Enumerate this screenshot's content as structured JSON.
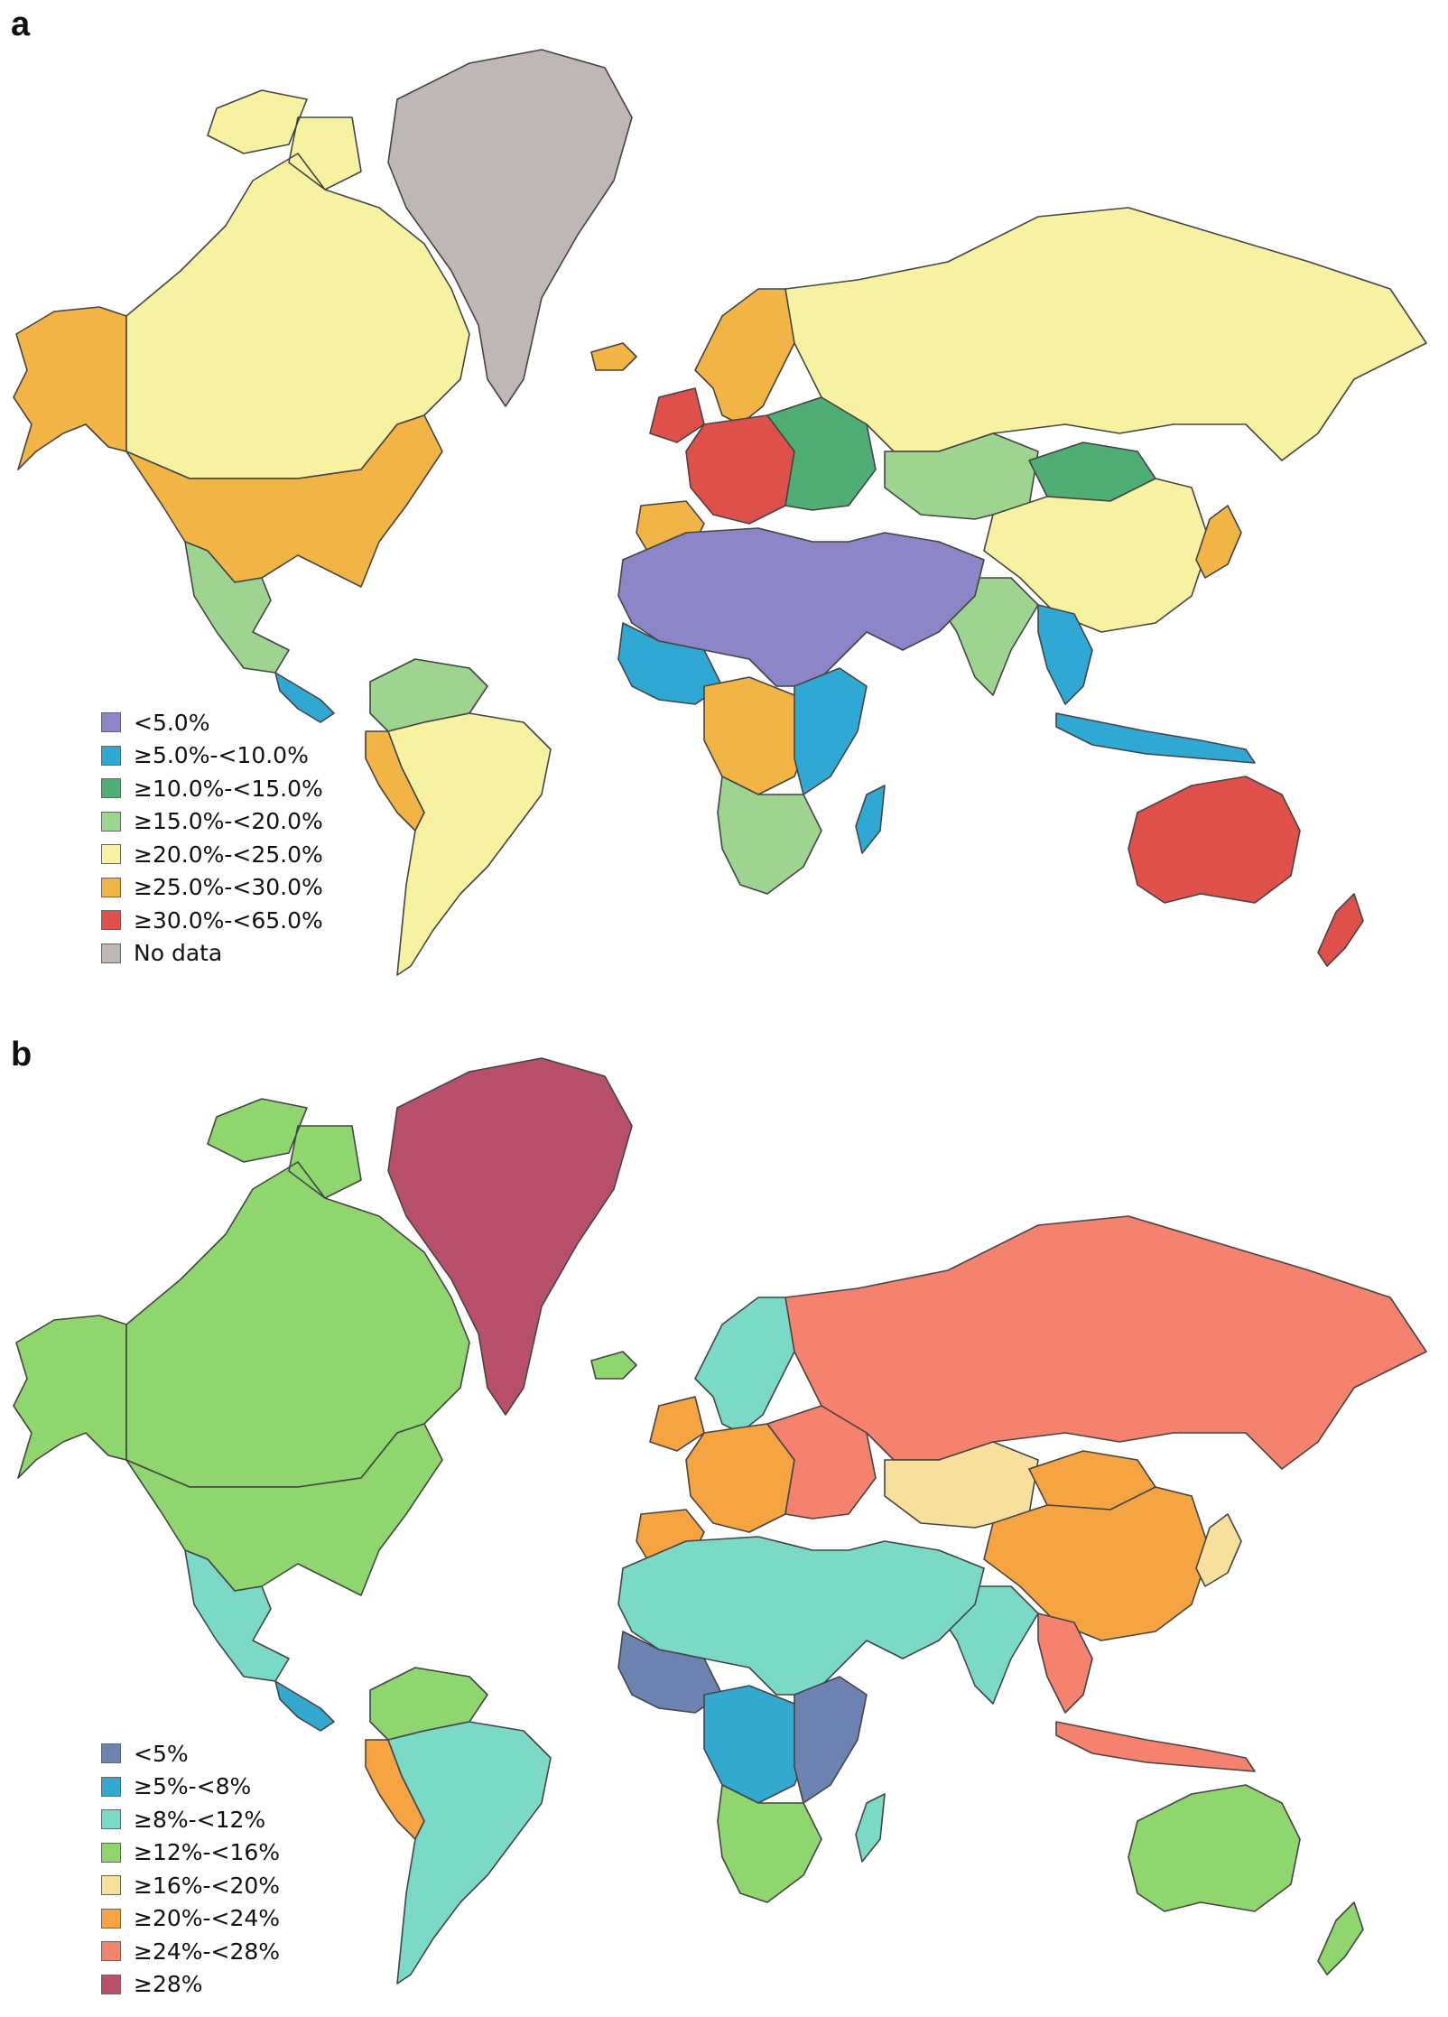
{
  "panels": [
    {
      "id": "a",
      "label": "a",
      "legend": [
        {
          "label": "<5.0%",
          "color": "#8c86c8"
        },
        {
          "label": "≥5.0%-<10.0%",
          "color": "#2fa9d4"
        },
        {
          "label": "≥10.0%-<15.0%",
          "color": "#4fae73"
        },
        {
          "label": "≥15.0%-<20.0%",
          "color": "#9dd590"
        },
        {
          "label": "≥20.0%-<25.0%",
          "color": "#f7f2a2"
        },
        {
          "label": "≥25.0%-<30.0%",
          "color": "#f3b446"
        },
        {
          "label": "≥30.0%-<65.0%",
          "color": "#e0504a"
        },
        {
          "label": "No data",
          "color": "#bfb7b6"
        }
      ]
    },
    {
      "id": "b",
      "label": "b",
      "legend": [
        {
          "label": "<5%",
          "color": "#6c82b0"
        },
        {
          "label": "≥5%-<8%",
          "color": "#33a9cf"
        },
        {
          "label": "≥8%-<12%",
          "color": "#7bdac7"
        },
        {
          "label": "≥12%-<16%",
          "color": "#8fd66f"
        },
        {
          "label": "≥16%-<20%",
          "color": "#f7e09c"
        },
        {
          "label": "≥20%-<24%",
          "color": "#f5a441"
        },
        {
          "label": "≥24%-<28%",
          "color": "#f4826f"
        },
        {
          "label": "≥28%",
          "color": "#b8506b"
        }
      ]
    }
  ],
  "regions": {
    "a": {
      "canada": "#f7f2a2",
      "alaska": "#f3b446",
      "usa": "#f3b446",
      "greenland": "#bfb7b6",
      "mexico": "#9dd590",
      "central_america": "#2fa9d4",
      "south_america": "#f7f2a2",
      "colombia_venezuela": "#9dd590",
      "peru": "#f3b446",
      "russia": "#f7f2a2",
      "scandinavia": "#f3b446",
      "western_europe": "#e0504a",
      "iberia": "#f3b446",
      "eastern_europe": "#4fae73",
      "kazakhstan": "#9dd590",
      "mongolia": "#4fae73",
      "china": "#f7f2a2",
      "north_africa_middle_east": "#8c86c8",
      "west_africa": "#2fa9d4",
      "central_africa": "#f3b446",
      "east_africa": "#2fa9d4",
      "southern_africa": "#9dd590",
      "madagascar": "#2fa9d4",
      "india": "#9dd590",
      "southeast_asia": "#2fa9d4",
      "indonesia": "#2fa9d4",
      "australia": "#e0504a",
      "new_zealand": "#e0504a",
      "japan": "#f3b446",
      "iceland": "#f3b446"
    },
    "b": {
      "canada": "#8fd66f",
      "alaska": "#8fd66f",
      "usa": "#8fd66f",
      "greenland": "#b8506b",
      "mexico": "#7bdac7",
      "central_america": "#33a9cf",
      "south_america": "#7bdac7",
      "colombia_venezuela": "#8fd66f",
      "peru": "#f5a441",
      "russia": "#f4826f",
      "scandinavia": "#7bdac7",
      "western_europe": "#f5a441",
      "iberia": "#f5a441",
      "eastern_europe": "#f4826f",
      "kazakhstan": "#f7e09c",
      "mongolia": "#f5a441",
      "china": "#f5a441",
      "north_africa_middle_east": "#7bdac7",
      "west_africa": "#6c82b0",
      "central_africa": "#33a9cf",
      "east_africa": "#6c82b0",
      "southern_africa": "#8fd66f",
      "madagascar": "#7bdac7",
      "india": "#7bdac7",
      "southeast_asia": "#f4826f",
      "indonesia": "#f4826f",
      "australia": "#8fd66f",
      "new_zealand": "#8fd66f",
      "japan": "#f7e09c",
      "iceland": "#8fd66f"
    }
  }
}
